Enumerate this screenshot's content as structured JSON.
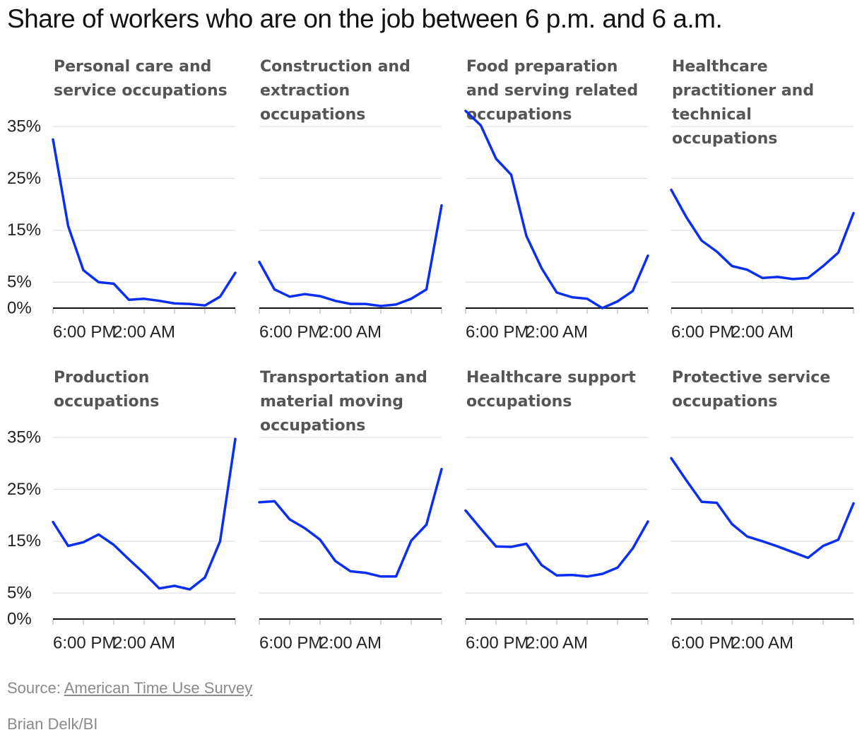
{
  "title": "Share of workers who are on the job between 6 p.m. and 6 a.m.",
  "source_prefix": "Source: ",
  "source_link": "American Time Use Survey",
  "credit": "Brian Delk/BI",
  "colors": {
    "line": "#0a2ff2",
    "grid": "#dedede",
    "axis": "#111111",
    "panel_title": "#555555"
  },
  "chart_data": {
    "type": "line",
    "layout": "small-multiples 2x4",
    "ylim": [
      0,
      38
    ],
    "yticks": [
      0,
      5,
      15,
      25,
      35
    ],
    "ytick_labels": [
      "0%",
      "5%",
      "15%",
      "25%",
      "35%"
    ],
    "x_tick_labels": [
      "6:00 PM",
      "2:00 AM"
    ],
    "grid": true,
    "panels": [
      {
        "title": [
          "Personal care and",
          "service occupations"
        ],
        "values": [
          32.5,
          15.8,
          7.3,
          5.0,
          4.7,
          1.6,
          1.8,
          1.4,
          0.9,
          0.8,
          0.5,
          2.2,
          6.8
        ]
      },
      {
        "title": [
          "Construction and",
          "extraction",
          "occupations"
        ],
        "values": [
          8.9,
          3.6,
          2.2,
          2.7,
          2.3,
          1.4,
          0.8,
          0.8,
          0.4,
          0.7,
          1.8,
          3.6,
          19.8
        ]
      },
      {
        "title": [
          "Food preparation",
          "and serving related",
          "occupations"
        ],
        "values": [
          38.0,
          35.2,
          28.8,
          25.7,
          13.9,
          7.7,
          3.0,
          2.1,
          1.8,
          0.0,
          1.3,
          3.3,
          10.1
        ]
      },
      {
        "title": [
          "Healthcare",
          "practitioner and",
          "technical",
          "occupations"
        ],
        "values": [
          22.8,
          17.5,
          13.0,
          10.9,
          8.1,
          7.4,
          5.8,
          6.0,
          5.6,
          5.8,
          8.1,
          10.7,
          18.3
        ]
      },
      {
        "title": [
          "Production",
          "occupations"
        ],
        "values": [
          18.7,
          14.1,
          14.8,
          16.3,
          14.3,
          11.5,
          8.8,
          5.9,
          6.4,
          5.7,
          8.0,
          15.0,
          34.7
        ]
      },
      {
        "title": [
          "Transportation and",
          "material moving",
          "occupations"
        ],
        "values": [
          22.5,
          22.7,
          19.2,
          17.5,
          15.3,
          11.2,
          9.2,
          8.9,
          8.2,
          8.2,
          15.1,
          18.2,
          28.9
        ]
      },
      {
        "title": [
          "Healthcare support",
          "occupations"
        ],
        "values": [
          20.9,
          17.4,
          14.0,
          13.9,
          14.5,
          10.4,
          8.4,
          8.5,
          8.2,
          8.7,
          9.9,
          13.6,
          18.8
        ]
      },
      {
        "title": [
          "Protective service",
          "occupations"
        ],
        "values": [
          31.0,
          26.7,
          22.6,
          22.4,
          18.3,
          15.9,
          15.0,
          14.0,
          12.9,
          11.8,
          14.1,
          15.3,
          22.3
        ]
      }
    ]
  }
}
